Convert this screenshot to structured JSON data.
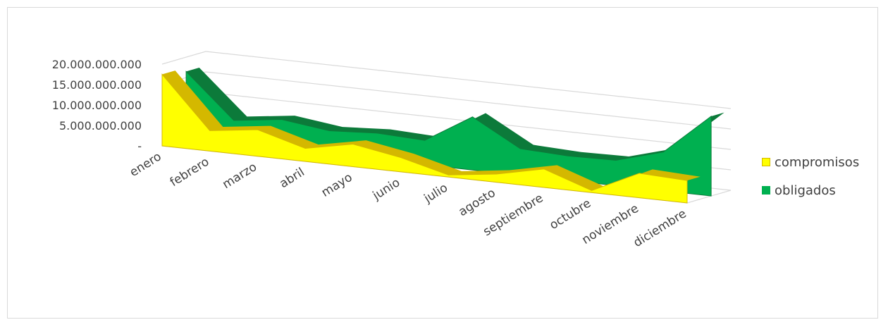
{
  "chart_data": {
    "type": "area",
    "style": "3d",
    "categories": [
      "enero",
      "febrero",
      "marzo",
      "abril",
      "mayo",
      "junio",
      "julio",
      "agosto",
      "septiembre",
      "octubre",
      "noviembre",
      "diciembre"
    ],
    "series": [
      {
        "name": "compromisos",
        "color": "#ffff00",
        "edge_color": "#d4b800",
        "values": [
          17500000000,
          5000000000,
          6500000000,
          3200000000,
          5500000000,
          3500000000,
          500000000,
          2000000000,
          4500000000,
          500000000,
          6000000000,
          5500000000
        ]
      },
      {
        "name": "obligados",
        "color": "#00b050",
        "edge_color": "#0c7a3a",
        "values": [
          16500000000,
          5800000000,
          7300000000,
          5800000000,
          6500000000,
          6000000000,
          13000000000,
          6500000000,
          6000000000,
          6200000000,
          9500000000,
          19500000000
        ]
      }
    ],
    "y_ticks": [
      "20.000.000.000",
      "15.000.000.000",
      "10.000.000.000",
      "5.000.000.000",
      "-"
    ],
    "ylim": [
      0,
      20000000000
    ],
    "grid": true,
    "legend_position": "right"
  }
}
